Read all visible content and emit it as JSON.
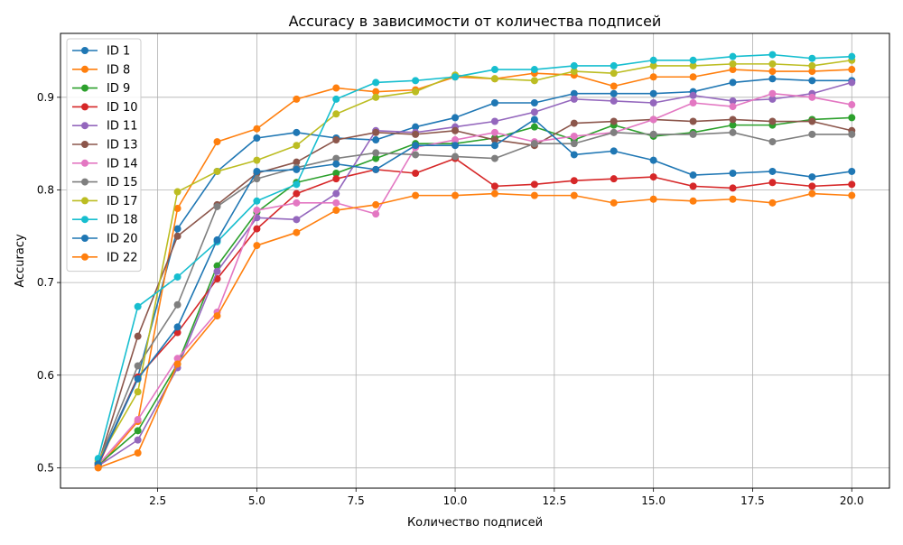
{
  "chart_data": {
    "type": "line",
    "title": "Accuracy в зависимости от количества подписей",
    "xlabel": "Количество подписей",
    "ylabel": "Accuracy",
    "xlim": [
      0.05,
      20.95
    ],
    "ylim": [
      0.478,
      0.969
    ],
    "xticks": [
      2.5,
      5.0,
      7.5,
      10.0,
      12.5,
      15.0,
      17.5,
      20.0
    ],
    "xtick_labels": [
      "2.5",
      "5.0",
      "7.5",
      "10.0",
      "12.5",
      "15.0",
      "17.5",
      "20.0"
    ],
    "yticks": [
      0.5,
      0.6,
      0.7,
      0.8,
      0.9
    ],
    "ytick_labels": [
      "0.5",
      "0.6",
      "0.7",
      "0.8",
      "0.9"
    ],
    "grid": true,
    "legend_position": "upper-left",
    "x": [
      1,
      2,
      3,
      4,
      5,
      6,
      7,
      8,
      9,
      10,
      11,
      12,
      13,
      14,
      15,
      16,
      17,
      18,
      19,
      20
    ],
    "series": [
      {
        "name": "ID 1",
        "color": "#1f77b4",
        "values": [
          0.505,
          0.598,
          0.758,
          0.82,
          0.856,
          0.862,
          0.856,
          0.854,
          0.868,
          0.878,
          0.894,
          0.894,
          0.904,
          0.904,
          0.904,
          0.906,
          0.916,
          0.92,
          0.918,
          0.918
        ]
      },
      {
        "name": "ID 8",
        "color": "#ff7f0e",
        "values": [
          0.5,
          0.55,
          0.78,
          0.852,
          0.866,
          0.898,
          0.91,
          0.906,
          0.908,
          0.922,
          0.92,
          0.926,
          0.924,
          0.912,
          0.922,
          0.922,
          0.93,
          0.928,
          0.928,
          0.93
        ]
      },
      {
        "name": "ID 9",
        "color": "#2ca02c",
        "values": [
          0.503,
          0.54,
          0.612,
          0.718,
          0.776,
          0.808,
          0.818,
          0.834,
          0.85,
          0.85,
          0.856,
          0.868,
          0.854,
          0.87,
          0.858,
          0.862,
          0.87,
          0.87,
          0.876,
          0.878
        ]
      },
      {
        "name": "ID 10",
        "color": "#d62728",
        "values": [
          0.502,
          0.598,
          0.646,
          0.704,
          0.758,
          0.796,
          0.812,
          0.822,
          0.818,
          0.834,
          0.804,
          0.806,
          0.81,
          0.812,
          0.814,
          0.804,
          0.802,
          0.808,
          0.804,
          0.806
        ]
      },
      {
        "name": "ID 11",
        "color": "#9467bd",
        "values": [
          0.502,
          0.53,
          0.608,
          0.712,
          0.77,
          0.768,
          0.796,
          0.864,
          0.862,
          0.868,
          0.874,
          0.884,
          0.898,
          0.896,
          0.894,
          0.902,
          0.896,
          0.898,
          0.904,
          0.916
        ]
      },
      {
        "name": "ID 13",
        "color": "#8c564b",
        "values": [
          0.504,
          0.642,
          0.75,
          0.784,
          0.818,
          0.83,
          0.854,
          0.862,
          0.86,
          0.864,
          0.854,
          0.848,
          0.872,
          0.874,
          0.876,
          0.874,
          0.876,
          0.874,
          0.874,
          0.864
        ]
      },
      {
        "name": "ID 14",
        "color": "#e377c2",
        "values": [
          0.503,
          0.552,
          0.618,
          0.668,
          0.778,
          0.786,
          0.786,
          0.774,
          0.846,
          0.854,
          0.862,
          0.852,
          0.858,
          0.862,
          0.876,
          0.894,
          0.89,
          0.904,
          0.9,
          0.892
        ]
      },
      {
        "name": "ID 15",
        "color": "#7f7f7f",
        "values": [
          0.506,
          0.61,
          0.676,
          0.782,
          0.812,
          0.824,
          0.834,
          0.84,
          0.838,
          0.836,
          0.834,
          0.85,
          0.85,
          0.862,
          0.86,
          0.86,
          0.862,
          0.852,
          0.86,
          0.86
        ]
      },
      {
        "name": "ID 17",
        "color": "#bcbd22",
        "values": [
          0.508,
          0.582,
          0.798,
          0.82,
          0.832,
          0.848,
          0.882,
          0.9,
          0.906,
          0.924,
          0.92,
          0.918,
          0.928,
          0.926,
          0.934,
          0.934,
          0.936,
          0.936,
          0.934,
          0.94
        ]
      },
      {
        "name": "ID 18",
        "color": "#17becf",
        "values": [
          0.51,
          0.674,
          0.706,
          0.744,
          0.788,
          0.806,
          0.898,
          0.916,
          0.918,
          0.922,
          0.93,
          0.93,
          0.934,
          0.934,
          0.94,
          0.94,
          0.944,
          0.946,
          0.942,
          0.944
        ]
      },
      {
        "name": "ID 20",
        "color": "#1f77b4",
        "values": [
          0.504,
          0.596,
          0.652,
          0.746,
          0.82,
          0.822,
          0.828,
          0.822,
          0.848,
          0.848,
          0.848,
          0.876,
          0.838,
          0.842,
          0.832,
          0.816,
          0.818,
          0.82,
          0.814,
          0.82
        ]
      },
      {
        "name": "ID 22",
        "color": "#ff7f0e",
        "values": [
          0.5,
          0.516,
          0.612,
          0.664,
          0.74,
          0.754,
          0.778,
          0.784,
          0.794,
          0.794,
          0.796,
          0.794,
          0.794,
          0.786,
          0.79,
          0.788,
          0.79,
          0.786,
          0.796,
          0.794
        ]
      }
    ]
  }
}
